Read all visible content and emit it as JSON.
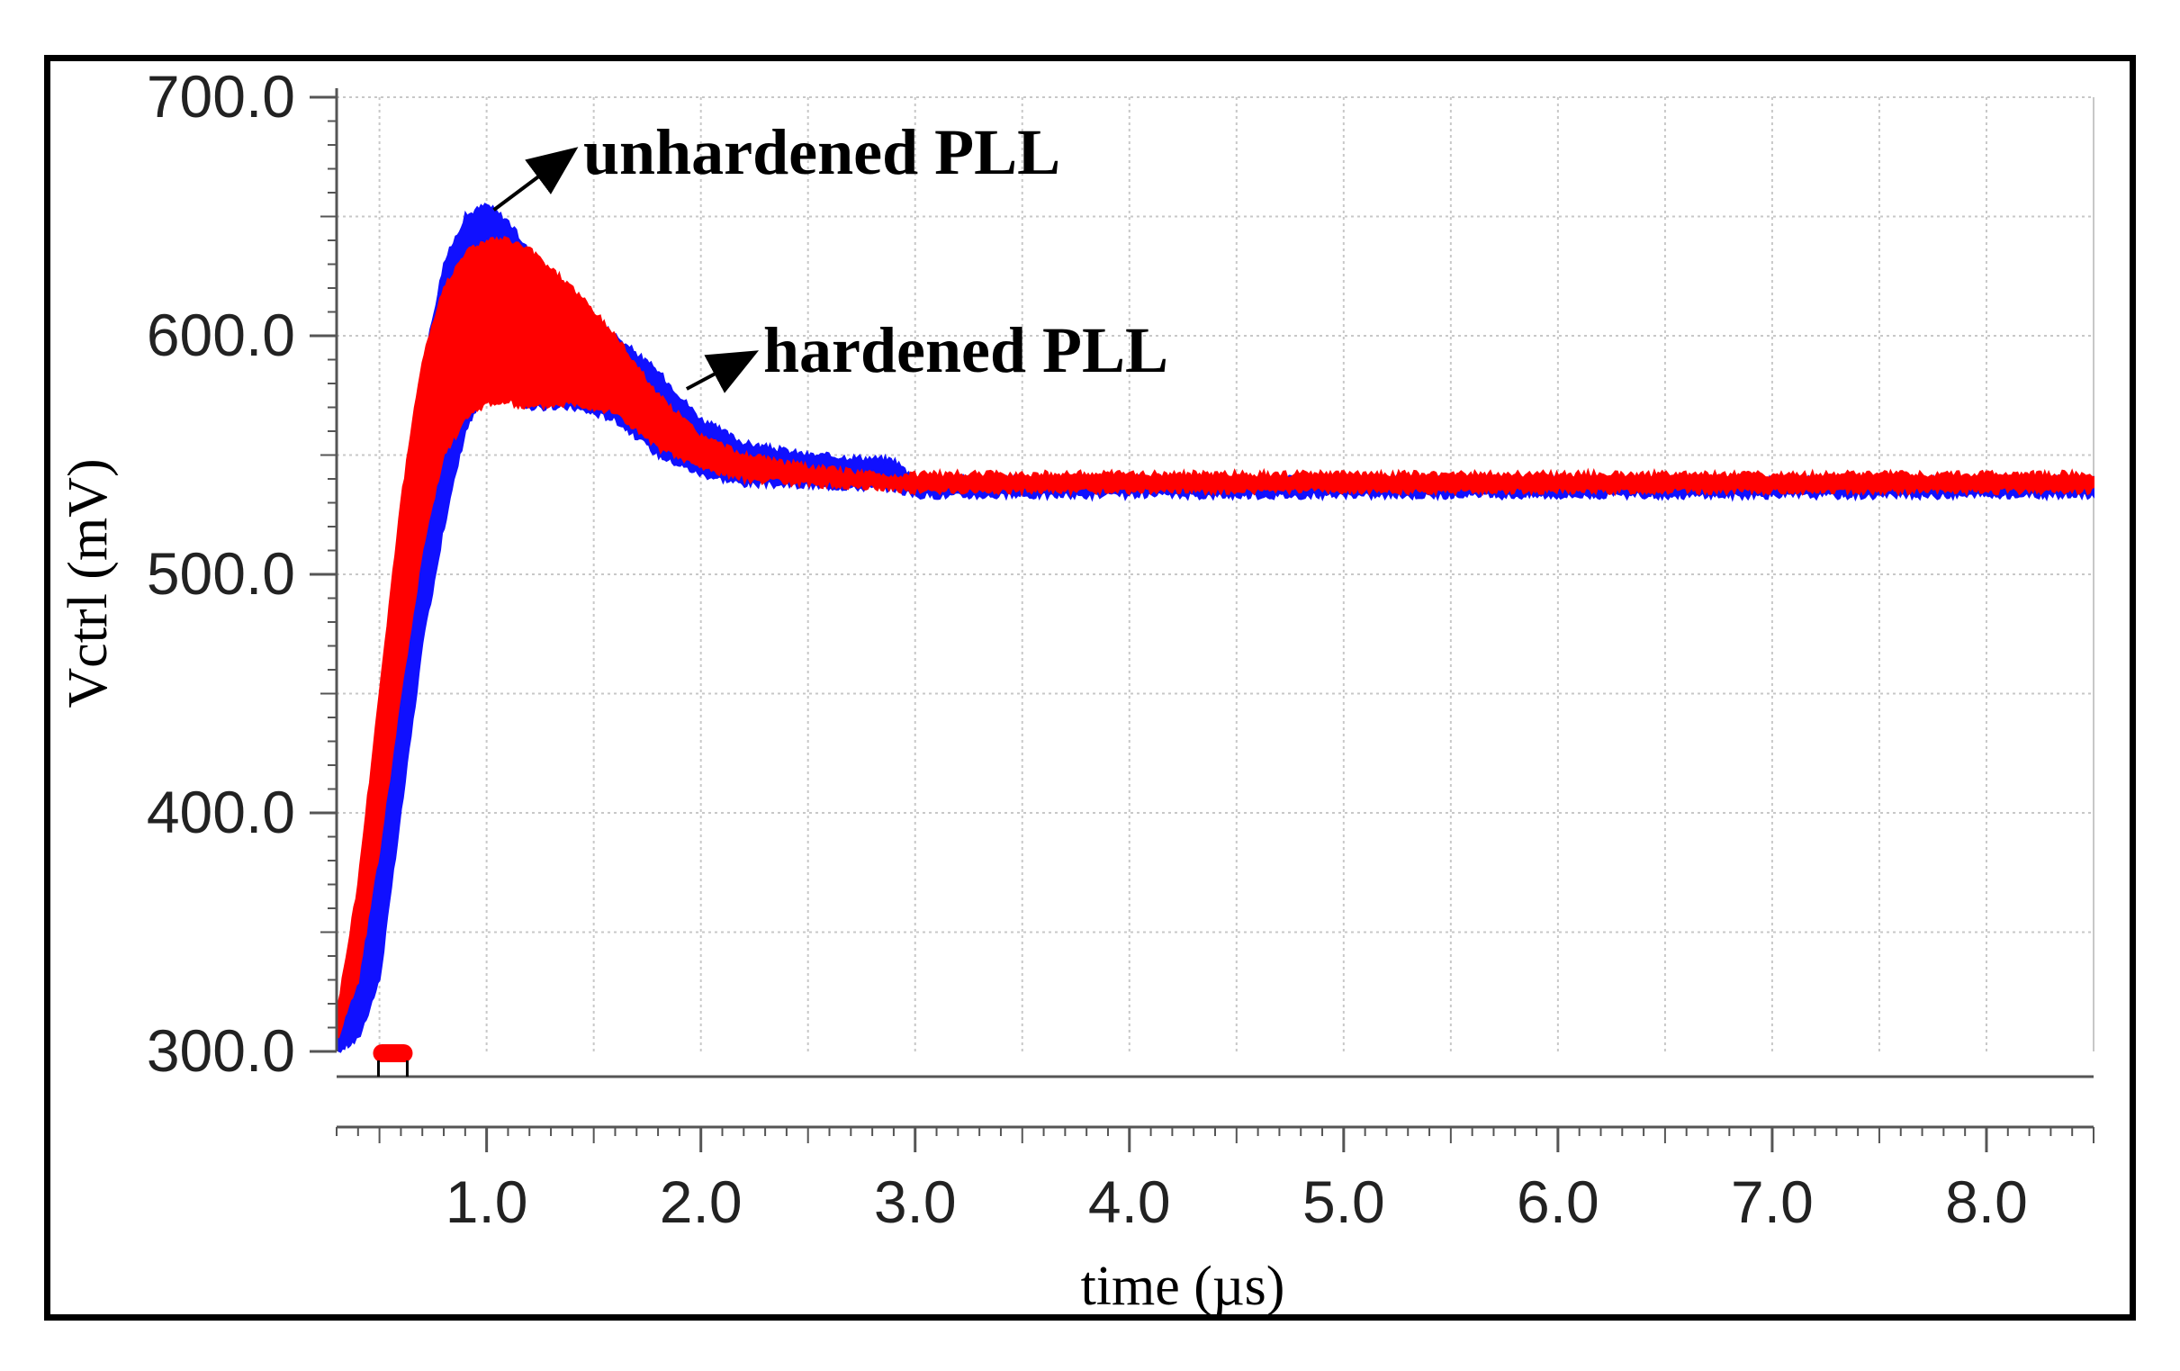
{
  "chart_data": {
    "type": "line",
    "title": "",
    "xlabel": "time (µs)",
    "ylabel": "Vctrl (mV)",
    "xlim": [
      0.3,
      8.5
    ],
    "ylim": [
      300,
      700
    ],
    "x_ticks": [
      1.0,
      2.0,
      3.0,
      4.0,
      5.0,
      6.0,
      7.0,
      8.0
    ],
    "x_tick_labels": [
      "1.0",
      "2.0",
      "3.0",
      "4.0",
      "5.0",
      "6.0",
      "7.0",
      "8.0"
    ],
    "y_ticks": [
      300,
      400,
      500,
      600,
      700
    ],
    "y_tick_labels": [
      "300.0",
      "400.0",
      "500.0",
      "600.0",
      "700.0"
    ],
    "grid": true,
    "colors": {
      "unhardened": "#1010ff",
      "hardened": "#ff0000",
      "grid": "#c8c8c8",
      "axis": "#555555"
    },
    "series": [
      {
        "name": "unhardened PLL",
        "color": "#1010ff",
        "x": [
          0.3,
          0.4,
          0.5,
          0.6,
          0.7,
          0.8,
          0.9,
          1.0,
          1.1,
          1.2,
          1.4,
          1.6,
          1.8,
          2.0,
          2.2,
          2.5,
          2.9,
          3.0,
          3.5,
          4.0,
          5.0,
          6.0,
          7.0,
          8.0,
          8.5
        ],
        "upper": [
          310,
          360,
          440,
          520,
          585,
          630,
          650,
          655,
          648,
          635,
          615,
          600,
          585,
          565,
          555,
          550,
          548,
          540,
          540,
          540,
          540,
          540,
          540,
          540,
          540
        ],
        "lower": [
          300,
          305,
          330,
          400,
          470,
          520,
          560,
          577,
          575,
          570,
          570,
          565,
          550,
          542,
          538,
          537,
          536,
          533,
          533,
          533,
          533,
          533,
          533,
          533,
          533
        ]
      },
      {
        "name": "hardened PLL",
        "color": "#ff0000",
        "x": [
          0.3,
          0.4,
          0.5,
          0.6,
          0.7,
          0.8,
          0.9,
          1.0,
          1.1,
          1.2,
          1.4,
          1.6,
          1.8,
          2.0,
          2.2,
          2.5,
          2.9,
          3.0,
          3.5,
          4.0,
          5.0,
          6.0,
          7.0,
          8.0,
          8.5
        ],
        "upper": [
          315,
          370,
          450,
          530,
          590,
          620,
          635,
          640,
          640,
          636,
          620,
          600,
          575,
          558,
          550,
          545,
          541,
          542,
          542,
          542,
          542,
          542,
          542,
          542,
          542
        ],
        "lower": [
          305,
          330,
          385,
          450,
          510,
          550,
          565,
          572,
          572,
          570,
          572,
          568,
          553,
          545,
          540,
          538,
          536,
          535,
          535,
          535,
          535,
          535,
          535,
          535,
          535
        ]
      }
    ],
    "annotations": [
      {
        "text": "unhardened PLL",
        "target_series": "unhardened PLL",
        "point": [
          1.0,
          655
        ]
      },
      {
        "text": "hardened PLL",
        "target_series": "hardened PLL",
        "point": [
          1.9,
          580
        ]
      }
    ]
  }
}
